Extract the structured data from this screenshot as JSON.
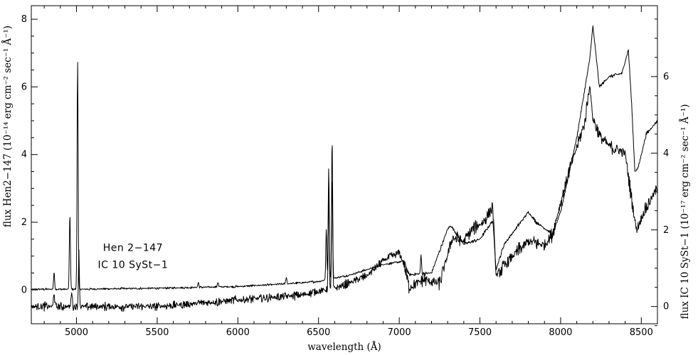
{
  "chart_data": {
    "type": "line",
    "title": "",
    "xlabel": "wavelength (Å)",
    "ylabel_left": "flux Hen2−147 (10⁻¹⁴ erg cm⁻² sec⁻¹ Å⁻¹)",
    "ylabel_right": "flux IC 10 SySt−1 (10⁻¹⁷ erg cm⁻² sec⁻¹ Å⁻¹)",
    "xlim": [
      4720,
      8600
    ],
    "ylim_left": [
      -1.0,
      8.4
    ],
    "ylim_right": [
      -0.45,
      7.85
    ],
    "x_ticks": [
      5000,
      5500,
      6000,
      6500,
      7000,
      7500,
      8000,
      8500
    ],
    "x_tick_labels": [
      "5000",
      "5500",
      "6000",
      "6500",
      "7000",
      "7500",
      "8000",
      "8500"
    ],
    "y_ticks_left": [
      0,
      2,
      4,
      6,
      8
    ],
    "y_tick_labels_left": [
      "0",
      "2",
      "4",
      "6",
      "8"
    ],
    "y_ticks_right": [
      0,
      2,
      4,
      6
    ],
    "y_tick_labels_right": [
      "0",
      "2",
      "4",
      "6"
    ],
    "grid": false,
    "series": [
      {
        "name": "Hen 2-147",
        "axis": "left",
        "continuum": [
          [
            4720,
            0.02
          ],
          [
            5000,
            0.02
          ],
          [
            5500,
            0.05
          ],
          [
            6000,
            0.1
          ],
          [
            6300,
            0.18
          ],
          [
            6500,
            0.25
          ],
          [
            6700,
            0.45
          ],
          [
            6900,
            0.75
          ],
          [
            7030,
            0.85
          ],
          [
            7060,
            0.45
          ],
          [
            7200,
            0.5
          ],
          [
            7300,
            1.8
          ],
          [
            7320,
            1.9
          ],
          [
            7400,
            1.35
          ],
          [
            7500,
            1.5
          ],
          [
            7580,
            2.05
          ],
          [
            7600,
            0.6
          ],
          [
            7650,
            1.35
          ],
          [
            7800,
            2.3
          ],
          [
            7850,
            2.0
          ],
          [
            7950,
            1.65
          ],
          [
            8000,
            2.3
          ],
          [
            8100,
            4.5
          ],
          [
            8180,
            6.8
          ],
          [
            8200,
            7.8
          ],
          [
            8240,
            6.0
          ],
          [
            8300,
            6.3
          ],
          [
            8380,
            6.4
          ],
          [
            8420,
            7.1
          ],
          [
            8440,
            5.5
          ],
          [
            8460,
            3.5
          ],
          [
            8480,
            3.6
          ],
          [
            8530,
            4.6
          ],
          [
            8600,
            5.0
          ]
        ],
        "emission_lines": [
          [
            4861,
            0.5
          ],
          [
            4959,
            2.25
          ],
          [
            5007,
            6.8
          ],
          [
            5755,
            0.15
          ],
          [
            5876,
            0.15
          ],
          [
            6300,
            0.2
          ],
          [
            6548,
            1.5
          ],
          [
            6563,
            3.3
          ],
          [
            6584,
            4.15
          ],
          [
            7135,
            0.55
          ]
        ],
        "noise_amplitude": 0.04
      },
      {
        "name": "IC 10 SySt-1",
        "axis": "right",
        "continuum": [
          [
            4720,
            0.0
          ],
          [
            5000,
            0.0
          ],
          [
            5500,
            0.0
          ],
          [
            5800,
            0.1
          ],
          [
            6100,
            0.2
          ],
          [
            6400,
            0.3
          ],
          [
            6500,
            0.4
          ],
          [
            6620,
            0.5
          ],
          [
            6800,
            0.8
          ],
          [
            6900,
            1.2
          ],
          [
            7000,
            1.4
          ],
          [
            7030,
            1.1
          ],
          [
            7060,
            0.5
          ],
          [
            7150,
            0.7
          ],
          [
            7250,
            0.6
          ],
          [
            7330,
            1.8
          ],
          [
            7400,
            1.7
          ],
          [
            7450,
            2.0
          ],
          [
            7520,
            2.2
          ],
          [
            7580,
            2.6
          ],
          [
            7600,
            0.8
          ],
          [
            7700,
            1.3
          ],
          [
            7800,
            1.7
          ],
          [
            7900,
            1.6
          ],
          [
            7950,
            1.9
          ],
          [
            8050,
            3.5
          ],
          [
            8150,
            4.8
          ],
          [
            8180,
            5.8
          ],
          [
            8200,
            4.9
          ],
          [
            8250,
            4.4
          ],
          [
            8300,
            4.2
          ],
          [
            8400,
            4.0
          ],
          [
            8440,
            2.8
          ],
          [
            8470,
            2.0
          ],
          [
            8520,
            2.5
          ],
          [
            8600,
            3.1
          ]
        ],
        "emission_lines": [
          [
            4861,
            0.4
          ],
          [
            4970,
            0.45
          ],
          [
            5015,
            1.4
          ],
          [
            6563,
            2.5
          ],
          [
            6584,
            2.9
          ]
        ],
        "noise_amplitude": 0.14
      }
    ],
    "annotations": [
      {
        "text": "Hen 2−147",
        "x": 5350,
        "y": 1.15,
        "axis": "left"
      },
      {
        "text": "IC 10 SySt−1",
        "x": 5350,
        "y": 1.0,
        "axis": "right"
      }
    ],
    "legend": "none"
  }
}
